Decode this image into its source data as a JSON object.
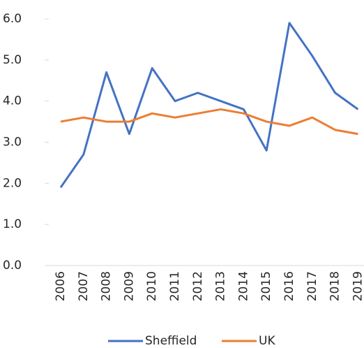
{
  "chart_data": {
    "type": "line",
    "categories": [
      "2006",
      "2007",
      "2008",
      "2009",
      "2010",
      "2011",
      "2012",
      "2013",
      "2014",
      "2015",
      "2016",
      "2017",
      "2018",
      "2019"
    ],
    "series": [
      {
        "name": "Sheffield",
        "color": "#4472c4",
        "values": [
          1.9,
          2.7,
          4.7,
          3.2,
          4.8,
          4.0,
          4.2,
          4.0,
          3.8,
          2.8,
          5.9,
          5.1,
          4.2,
          3.8
        ]
      },
      {
        "name": "UK",
        "color": "#ed7d31",
        "values": [
          3.5,
          3.6,
          3.5,
          3.5,
          3.7,
          3.6,
          3.7,
          3.8,
          3.7,
          3.5,
          3.4,
          3.6,
          3.3,
          3.2
        ]
      }
    ],
    "ylim": [
      0,
      6
    ],
    "yticks": [
      {
        "value": 0,
        "label": "0.0"
      },
      {
        "value": 1,
        "label": "1.0"
      },
      {
        "value": 2,
        "label": "2.0"
      },
      {
        "value": 3,
        "label": "3.0"
      },
      {
        "value": 4,
        "label": "4.0"
      },
      {
        "value": 5,
        "label": "5.0"
      },
      {
        "value": 6,
        "label": "6.0"
      }
    ],
    "grid": false,
    "legend": "bottom"
  }
}
